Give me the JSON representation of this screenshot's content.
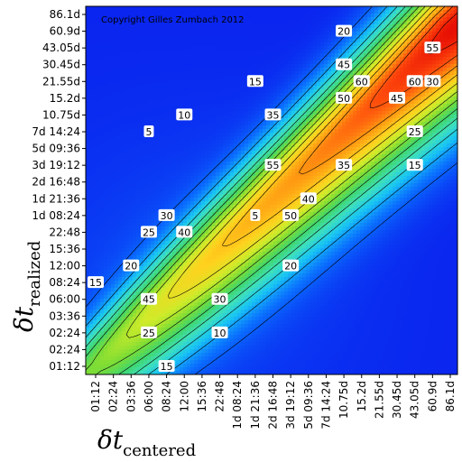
{
  "chart_data": {
    "type": "heatmap",
    "subtype": "contour",
    "copyright": "Copyright Gilles Zumbach 2012",
    "xlabel": {
      "symbol": "δt",
      "subscript": "centered"
    },
    "ylabel": {
      "symbol": "δt",
      "subscript": "realized"
    },
    "x_ticks": [
      "01:12",
      "02:24",
      "03:36",
      "06:00",
      "08:24",
      "12:00",
      "15:36",
      "22:48",
      "1d 08:24",
      "1d 21:36",
      "2d 16:48",
      "3d 19:12",
      "5d 09:36",
      "7d 14:24",
      "10.75d",
      "15.2d",
      "21.55d",
      "30.45d",
      "43.05d",
      "60.9d",
      "86.1d"
    ],
    "y_ticks": [
      "01:12",
      "02:24",
      "02:24",
      "03:36",
      "06:00",
      "08:24",
      "12:00",
      "15:36",
      "22:48",
      "1d 08:24",
      "1d 21:36",
      "2d 16:48",
      "3d 19:12",
      "5d 09:36",
      "7d 14:24",
      "10.75d",
      "15.2d",
      "21.55d",
      "30.45d",
      "43.05d",
      "60.9d",
      "86.1d"
    ],
    "contour_levels": [
      5,
      10,
      15,
      20,
      25,
      30,
      35,
      40,
      45,
      50,
      55,
      60
    ],
    "color_scale": [
      "#0a22ee",
      "#0a6cff",
      "#18c4f4",
      "#3ee0bc",
      "#40d66c",
      "#7fdd34",
      "#cfeb2a",
      "#ffd21e",
      "#ff9a12",
      "#ff4a0c",
      "#e81004"
    ],
    "value_range": [
      0,
      62
    ],
    "ridge": {
      "peak": 62,
      "peak_at_log_index": 20
    },
    "contour_labels": [
      {
        "text": "5",
        "x": "1d 21:36",
        "y": "1d 08:24"
      },
      {
        "text": "5",
        "x": "06:00",
        "y": "7d 14:24"
      },
      {
        "text": "10",
        "x": "12:00",
        "y": "10.75d"
      },
      {
        "text": "10",
        "x": "22:48",
        "y": "02:24"
      },
      {
        "text": "15",
        "x": "1d 21:36",
        "y": "21.55d"
      },
      {
        "text": "15",
        "x": "01:12",
        "y": "08:24"
      },
      {
        "text": "15",
        "x": "08:24",
        "y": "01:12"
      },
      {
        "text": "15",
        "x": "43.05d",
        "y": "3d 19:12"
      },
      {
        "text": "20",
        "x": "10.75d",
        "y": "60.9d"
      },
      {
        "text": "20",
        "x": "03:36",
        "y": "12:00"
      },
      {
        "text": "20",
        "x": "3d 19:12",
        "y": "12:00"
      },
      {
        "text": "25",
        "x": "43.05d",
        "y": "7d 14:24"
      },
      {
        "text": "25",
        "x": "06:00",
        "y": "22:48"
      },
      {
        "text": "25",
        "x": "06:00",
        "y": "02:24"
      },
      {
        "text": "30",
        "x": "60.9d",
        "y": "21.55d"
      },
      {
        "text": "30",
        "x": "08:24",
        "y": "1d 08:24"
      },
      {
        "text": "30",
        "x": "22:48",
        "y": "06:00"
      },
      {
        "text": "35",
        "x": "2d 16:48",
        "y": "10.75d"
      },
      {
        "text": "35",
        "x": "10.75d",
        "y": "3d 19:12"
      },
      {
        "text": "40",
        "x": "12:00",
        "y": "22:48"
      },
      {
        "text": "40",
        "x": "5d 09:36",
        "y": "1d 21:36"
      },
      {
        "text": "45",
        "x": "30.45d",
        "y": "15.2d"
      },
      {
        "text": "45",
        "x": "10.75d",
        "y": "30.45d"
      },
      {
        "text": "45",
        "x": "06:00",
        "y": "06:00"
      },
      {
        "text": "50",
        "x": "3d 19:12",
        "y": "1d 08:24"
      },
      {
        "text": "50",
        "x": "10.75d",
        "y": "15.2d"
      },
      {
        "text": "55",
        "x": "2d 16:48",
        "y": "3d 19:12"
      },
      {
        "text": "55",
        "x": "60.9d",
        "y": "43.05d"
      },
      {
        "text": "60",
        "x": "15.2d",
        "y": "21.55d"
      },
      {
        "text": "60",
        "x": "43.05d",
        "y": "21.55d"
      }
    ]
  }
}
